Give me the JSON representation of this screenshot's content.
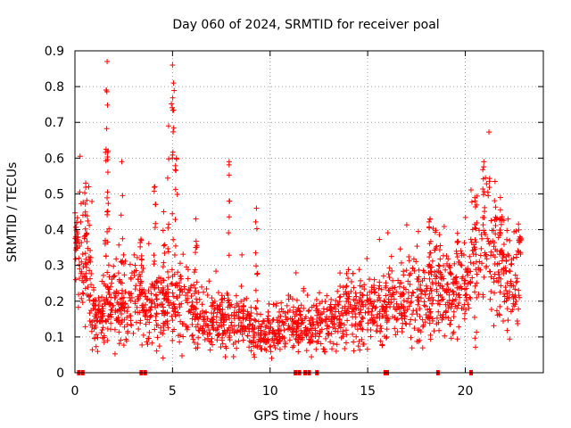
{
  "chart_data": {
    "type": "scatter",
    "title": "Day 060 of 2024, SRMTID for receiver poal",
    "xlabel": "GPS time / hours",
    "ylabel": "SRMTID / TECUs",
    "xlim": [
      0,
      24
    ],
    "ylim": [
      0,
      0.9
    ],
    "x_ticks": [
      0,
      5,
      10,
      15,
      20
    ],
    "x_tick_labels": [
      "0",
      "5",
      "10",
      "15",
      "20"
    ],
    "y_ticks": [
      0,
      0.1,
      0.2,
      0.3,
      0.4,
      0.5,
      0.6,
      0.7,
      0.8,
      0.9
    ],
    "y_tick_labels": [
      "0",
      "0.1",
      "0.2",
      "0.3",
      "0.4",
      "0.5",
      "0.6",
      "0.7",
      "0.8",
      "0.9"
    ],
    "grid": true,
    "marker": "+",
    "color": "#ff0000",
    "series": [
      {
        "name": "SRMTID",
        "hourly_profile_hours": [
          0,
          0.5,
          1,
          1.5,
          2,
          2.5,
          3,
          3.5,
          4,
          4.5,
          5,
          5.5,
          6,
          6.5,
          7,
          7.5,
          8,
          8.5,
          9,
          9.5,
          10,
          10.5,
          11,
          11.5,
          12,
          12.5,
          13,
          13.5,
          14,
          14.5,
          15,
          15.5,
          16,
          16.5,
          17,
          17.5,
          18,
          18.5,
          19,
          19.5,
          20,
          20.5,
          21,
          21.5,
          22,
          22.5,
          22.8
        ],
        "hourly_profile_typical": [
          0.33,
          0.35,
          0.16,
          0.14,
          0.2,
          0.16,
          0.2,
          0.19,
          0.18,
          0.17,
          0.16,
          0.2,
          0.18,
          0.16,
          0.15,
          0.14,
          0.13,
          0.15,
          0.12,
          0.1,
          0.11,
          0.12,
          0.13,
          0.13,
          0.12,
          0.13,
          0.14,
          0.15,
          0.19,
          0.17,
          0.16,
          0.17,
          0.18,
          0.19,
          0.2,
          0.2,
          0.21,
          0.26,
          0.23,
          0.22,
          0.24,
          0.3,
          0.35,
          0.33,
          0.28,
          0.26,
          0.3
        ],
        "peaks": [
          {
            "x": 0.1,
            "y": 0.42
          },
          {
            "x": 0.55,
            "y": 0.53
          },
          {
            "x": 1.65,
            "y": 0.87
          },
          {
            "x": 1.6,
            "y": 0.79
          },
          {
            "x": 1.7,
            "y": 0.62
          },
          {
            "x": 2.4,
            "y": 0.59
          },
          {
            "x": 3.4,
            "y": 0.37
          },
          {
            "x": 4.1,
            "y": 0.52
          },
          {
            "x": 4.55,
            "y": 0.45
          },
          {
            "x": 4.8,
            "y": 0.69
          },
          {
            "x": 5.0,
            "y": 0.86
          },
          {
            "x": 5.05,
            "y": 0.81
          },
          {
            "x": 5.2,
            "y": 0.6
          },
          {
            "x": 6.2,
            "y": 0.43
          },
          {
            "x": 7.9,
            "y": 0.59
          },
          {
            "x": 9.3,
            "y": 0.46
          },
          {
            "x": 18.2,
            "y": 0.43
          },
          {
            "x": 19.6,
            "y": 0.39
          },
          {
            "x": 20.5,
            "y": 0.48
          },
          {
            "x": 20.95,
            "y": 0.59
          },
          {
            "x": 21.8,
            "y": 0.49
          },
          {
            "x": 22.8,
            "y": 0.38
          }
        ],
        "baseline_markers_x": [
          0.2,
          0.4,
          3.4,
          3.6,
          11.3,
          11.5,
          11.8,
          12.0,
          12.4,
          15.9,
          16.0,
          18.6,
          20.3
        ]
      }
    ]
  }
}
